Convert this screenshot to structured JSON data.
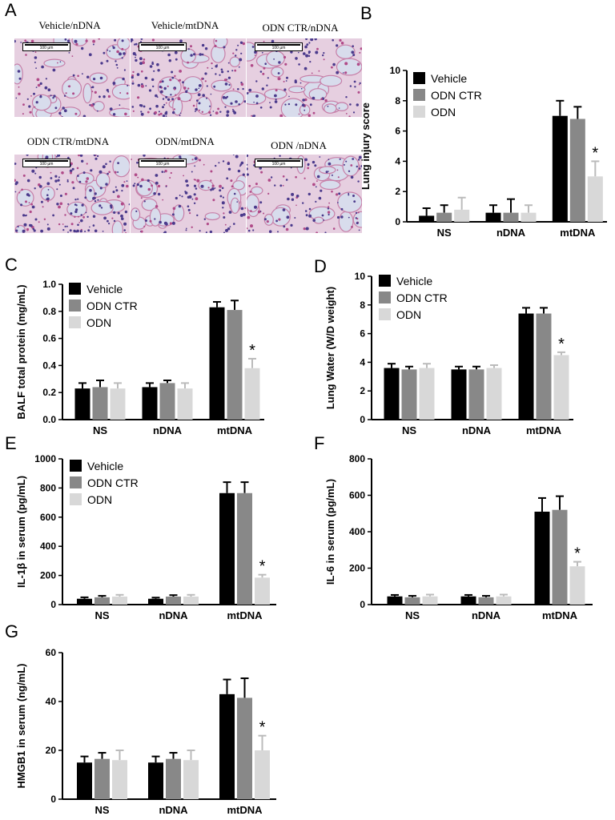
{
  "figure": {
    "letters": {
      "a": "A",
      "b": "B",
      "c": "C",
      "d": "D",
      "e": "E",
      "f": "F",
      "g": "G"
    },
    "histology": {
      "scale_label": "100 µm",
      "tint": "#e6cfe0",
      "images": [
        {
          "caption": "Vehicle/nDNA",
          "density": 0.35,
          "seed": 3
        },
        {
          "caption": "Vehicle/mtDNA",
          "density": 0.85,
          "seed": 11
        },
        {
          "caption": "ODN CTR/nDNA",
          "density": 0.4,
          "seed": 19
        },
        {
          "caption": "ODN CTR/mtDNA",
          "density": 0.8,
          "seed": 27
        },
        {
          "caption": "ODN/mtDNA",
          "density": 0.5,
          "seed": 35
        },
        {
          "caption": "ODN  /nDNA",
          "density": 0.45,
          "seed": 43
        }
      ]
    }
  },
  "chart_data": [
    {
      "id": "B",
      "type": "bar",
      "ylabel": "Lung injury score",
      "categories": [
        "NS",
        "nDNA",
        "mtDNA"
      ],
      "ylim": [
        0,
        10
      ],
      "yticks": [
        0,
        2,
        4,
        6,
        8,
        10
      ],
      "series": [
        {
          "name": "Vehicle",
          "color": "#000000",
          "values": [
            0.4,
            0.6,
            7.0
          ],
          "errors": [
            0.5,
            0.5,
            1.0
          ]
        },
        {
          "name": "ODN CTR",
          "color": "#888888",
          "values": [
            0.6,
            0.6,
            6.8
          ],
          "errors": [
            0.5,
            0.9,
            0.8
          ]
        },
        {
          "name": "ODN",
          "color": "#d8d8d8",
          "values": [
            0.8,
            0.6,
            3.0
          ],
          "errors": [
            0.8,
            0.5,
            1.0
          ]
        }
      ],
      "annotations": [
        {
          "category": "mtDNA",
          "series": "ODN",
          "text": "*"
        }
      ]
    },
    {
      "id": "C",
      "type": "bar",
      "ylabel": "BALF total protein (mg/mL)",
      "categories": [
        "NS",
        "nDNA",
        "mtDNA"
      ],
      "ylim": [
        0,
        1.0
      ],
      "yticks": [
        "0.0",
        "0.2",
        "0.4",
        "0.6",
        "0.8",
        "1.0"
      ],
      "series": [
        {
          "name": "Vehicle",
          "color": "#000000",
          "values": [
            0.23,
            0.24,
            0.83
          ],
          "errors": [
            0.04,
            0.03,
            0.04
          ]
        },
        {
          "name": "ODN CTR",
          "color": "#888888",
          "values": [
            0.24,
            0.27,
            0.81
          ],
          "errors": [
            0.05,
            0.02,
            0.07
          ]
        },
        {
          "name": "ODN",
          "color": "#d8d8d8",
          "values": [
            0.23,
            0.23,
            0.38
          ],
          "errors": [
            0.04,
            0.04,
            0.07
          ]
        }
      ],
      "annotations": [
        {
          "category": "mtDNA",
          "series": "ODN",
          "text": "*"
        }
      ]
    },
    {
      "id": "D",
      "type": "bar",
      "ylabel": "Lung Water (W/D weight)",
      "categories": [
        "NS",
        "nDNA",
        "mtDNA"
      ],
      "ylim": [
        0,
        10
      ],
      "yticks": [
        0,
        2,
        4,
        6,
        8,
        10
      ],
      "series": [
        {
          "name": "Vehicle",
          "color": "#000000",
          "values": [
            3.6,
            3.5,
            7.4
          ],
          "errors": [
            0.3,
            0.2,
            0.4
          ]
        },
        {
          "name": "ODN CTR",
          "color": "#888888",
          "values": [
            3.5,
            3.5,
            7.4
          ],
          "errors": [
            0.2,
            0.2,
            0.4
          ]
        },
        {
          "name": "ODN",
          "color": "#d8d8d8",
          "values": [
            3.6,
            3.6,
            4.5
          ],
          "errors": [
            0.3,
            0.2,
            0.2
          ]
        }
      ],
      "annotations": [
        {
          "category": "mtDNA",
          "series": "ODN",
          "text": "*"
        }
      ]
    },
    {
      "id": "E",
      "type": "bar",
      "ylabel": "IL-1β in serum (pg/mL)",
      "categories": [
        "NS",
        "nDNA",
        "mtDNA"
      ],
      "ylim": [
        0,
        1000
      ],
      "yticks": [
        0,
        200,
        400,
        600,
        800,
        1000
      ],
      "series": [
        {
          "name": "Vehicle",
          "color": "#000000",
          "values": [
            40,
            40,
            765
          ],
          "errors": [
            10,
            8,
            75
          ]
        },
        {
          "name": "ODN CTR",
          "color": "#888888",
          "values": [
            50,
            55,
            765
          ],
          "errors": [
            10,
            10,
            75
          ]
        },
        {
          "name": "ODN",
          "color": "#d8d8d8",
          "values": [
            55,
            55,
            185
          ],
          "errors": [
            12,
            12,
            20
          ]
        }
      ],
      "annotations": [
        {
          "category": "mtDNA",
          "series": "ODN",
          "text": "*"
        }
      ]
    },
    {
      "id": "F",
      "type": "bar",
      "ylabel": "IL-6 in serum (pg/mL)",
      "categories": [
        "NS",
        "nDNA",
        "mtDNA"
      ],
      "ylim": [
        0,
        800
      ],
      "yticks": [
        0,
        200,
        400,
        600,
        800
      ],
      "series": [
        {
          "name": "Vehicle",
          "color": "#000000",
          "values": [
            45,
            45,
            510
          ],
          "errors": [
            8,
            8,
            75
          ]
        },
        {
          "name": "ODN CTR",
          "color": "#888888",
          "values": [
            40,
            40,
            520
          ],
          "errors": [
            8,
            8,
            75
          ]
        },
        {
          "name": "ODN",
          "color": "#d8d8d8",
          "values": [
            45,
            45,
            210
          ],
          "errors": [
            10,
            10,
            25
          ]
        }
      ],
      "annotations": [
        {
          "category": "mtDNA",
          "series": "ODN",
          "text": "*"
        }
      ]
    },
    {
      "id": "G",
      "type": "bar",
      "ylabel": "HMGB1 in serum (ng/mL)",
      "categories": [
        "NS",
        "nDNA",
        "mtDNA"
      ],
      "ylim": [
        0,
        60
      ],
      "yticks": [
        0,
        20,
        40,
        60
      ],
      "series": [
        {
          "name": "Vehicle",
          "color": "#000000",
          "values": [
            15,
            15,
            43
          ],
          "errors": [
            2.5,
            2.5,
            6
          ]
        },
        {
          "name": "ODN CTR",
          "color": "#888888",
          "values": [
            16.5,
            16.5,
            41.5
          ],
          "errors": [
            2.5,
            2.5,
            8
          ]
        },
        {
          "name": "ODN",
          "color": "#d8d8d8",
          "values": [
            16,
            16,
            20
          ],
          "errors": [
            4,
            4,
            6
          ]
        }
      ],
      "annotations": [
        {
          "category": "mtDNA",
          "series": "ODN",
          "text": "*"
        }
      ]
    }
  ]
}
